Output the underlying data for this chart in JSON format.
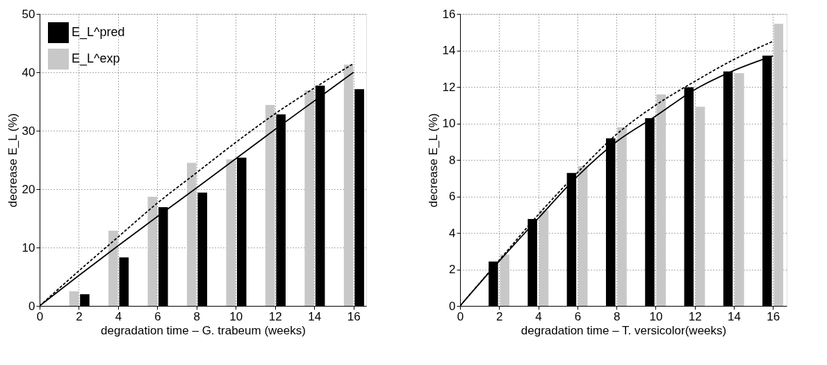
{
  "chart_data": [
    {
      "type": "bar",
      "xlabel": "degradation time – G. trabeum (weeks)",
      "ylabel": "decrease E_L (%)",
      "xlim": [
        0,
        16.65
      ],
      "xticks": [
        0,
        2,
        4,
        6,
        8,
        10,
        12,
        14,
        16
      ],
      "ylim": [
        0,
        50
      ],
      "yticks": [
        0,
        10,
        20,
        30,
        40,
        50
      ],
      "grid": true,
      "legend": "top left",
      "series": [
        {
          "name": "E_L^pred",
          "color": "#000000",
          "x": [
            2.3,
            4.3,
            6.3,
            8.3,
            10.3,
            12.3,
            14.3,
            16.3
          ],
          "values": [
            2.0,
            8.3,
            16.9,
            19.4,
            25.4,
            32.8,
            37.7,
            37.1
          ]
        },
        {
          "name": "E_L^exp",
          "color": "#c8c8c8",
          "x": [
            1.75,
            3.75,
            5.75,
            7.75,
            9.75,
            11.75,
            13.75,
            15.75
          ],
          "values": [
            2.5,
            12.9,
            18.7,
            24.5,
            25.1,
            34.4,
            36.9,
            41.3
          ]
        },
        {
          "type": "line",
          "line_style": "dashed",
          "color": "#000000",
          "x": [
            0,
            2,
            4,
            6,
            8,
            10,
            12,
            14,
            16
          ],
          "values": [
            0,
            6.0,
            11.8,
            17.6,
            22.8,
            28.0,
            32.9,
            37.3,
            41.5
          ]
        },
        {
          "type": "line",
          "line_style": "solid",
          "color": "#000000",
          "x": [
            0,
            2,
            4,
            6,
            8,
            10,
            12,
            14,
            16
          ],
          "values": [
            0,
            5.2,
            10.3,
            15.3,
            20.2,
            25.2,
            30.2,
            35.1,
            40.0
          ]
        }
      ]
    },
    {
      "type": "bar",
      "xlabel": "degradation time – T. versicolor(weeks)",
      "ylabel": "decrease E_L (%)",
      "xlim": [
        0,
        16.7
      ],
      "xticks": [
        0,
        2,
        4,
        6,
        8,
        10,
        12,
        14,
        16
      ],
      "ylim": [
        0,
        16
      ],
      "yticks": [
        0,
        2,
        4,
        6,
        8,
        10,
        12,
        14,
        16
      ],
      "grid": true,
      "legend": "top left",
      "series": [
        {
          "name": "E_L^exp",
          "color": "#c8c8c8",
          "x": [
            2.28,
            4.28,
            6.28,
            8.28,
            10.28,
            12.28,
            14.28,
            16.28
          ],
          "values": [
            2.81,
            5.24,
            7.66,
            9.79,
            11.59,
            10.91,
            12.75,
            15.46
          ]
        },
        {
          "name": "E_L^pred",
          "color": "#000000",
          "x": [
            1.7,
            3.7,
            5.7,
            7.7,
            9.7,
            11.7,
            13.7,
            15.7
          ],
          "values": [
            2.43,
            4.76,
            7.29,
            9.18,
            10.29,
            11.98,
            12.85,
            13.71
          ]
        },
        {
          "type": "line",
          "line_style": "dashed",
          "color": "#000000",
          "x": [
            0,
            2,
            4,
            6,
            8,
            10,
            12,
            14,
            16
          ],
          "values": [
            0,
            2.5,
            5.0,
            7.3,
            9.4,
            11.0,
            12.3,
            13.5,
            14.5
          ]
        },
        {
          "type": "line",
          "line_style": "solid",
          "color": "#000000",
          "x": [
            0,
            2,
            4,
            6,
            8,
            10,
            12,
            14,
            16
          ],
          "values": [
            0,
            2.45,
            4.8,
            7.1,
            9.0,
            10.4,
            11.85,
            12.9,
            13.7
          ]
        }
      ]
    }
  ]
}
